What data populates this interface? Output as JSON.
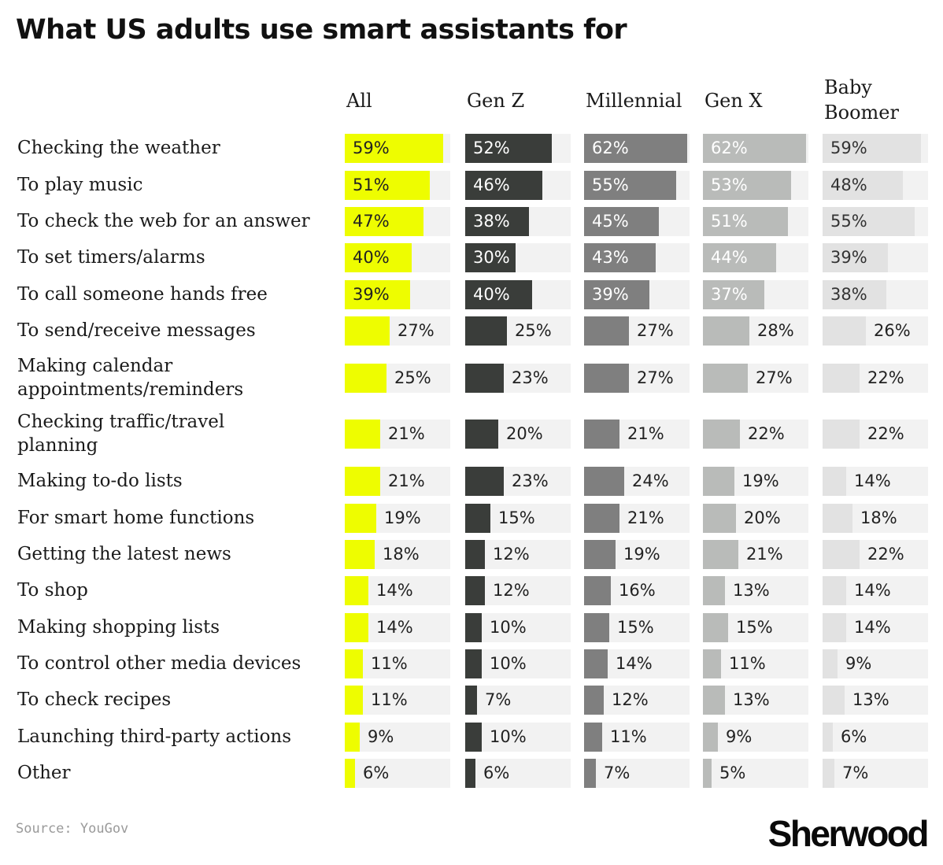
{
  "title": "What US adults use smart assistants for",
  "source": "Source: YouGov",
  "logo": "Sherwood",
  "chart_data": {
    "type": "bar",
    "title": "What US adults use smart assistants for",
    "value_unit": "%",
    "xlim": [
      0,
      100
    ],
    "categories": [
      "Checking the weather",
      "To play music",
      "To check the web for an answer",
      "To set timers/alarms",
      "To call someone hands free",
      "To send/receive messages",
      "Making calendar appointments/reminders",
      "Checking traffic/travel planning",
      "Making to-do lists",
      "For smart home functions",
      "Getting the latest news",
      "To shop",
      "Making shopping lists",
      "To control other media devices",
      "To check recipes",
      "Launching third-party actions",
      "Other"
    ],
    "category_lines": [
      [
        "Checking the weather"
      ],
      [
        "To play music"
      ],
      [
        "To check the web for an answer"
      ],
      [
        "To set timers/alarms"
      ],
      [
        "To call someone hands free"
      ],
      [
        "To send/receive messages"
      ],
      [
        "Making calendar",
        "appointments/reminders"
      ],
      [
        "Checking traffic/travel",
        "planning"
      ],
      [
        "Making to-do lists"
      ],
      [
        "For smart home functions"
      ],
      [
        "Getting the latest news"
      ],
      [
        "To shop"
      ],
      [
        "Making shopping lists"
      ],
      [
        "To control other media devices"
      ],
      [
        "To check recipes"
      ],
      [
        "Launching third-party actions"
      ],
      [
        "Other"
      ]
    ],
    "series": [
      {
        "name": "All",
        "header_lines": [
          "All"
        ],
        "color": "#eefd00",
        "label_color": "#222222",
        "values": [
          59,
          51,
          47,
          40,
          39,
          27,
          25,
          21,
          21,
          19,
          18,
          14,
          14,
          11,
          11,
          9,
          6
        ]
      },
      {
        "name": "Gen Z",
        "header_lines": [
          "Gen Z"
        ],
        "color": "#3a3d3a",
        "label_color": "#ffffff",
        "values": [
          52,
          46,
          38,
          30,
          40,
          25,
          23,
          20,
          23,
          15,
          12,
          12,
          10,
          10,
          7,
          10,
          6
        ]
      },
      {
        "name": "Millennial",
        "header_lines": [
          "Millennial"
        ],
        "color": "#7f7f7f",
        "label_color": "#ffffff",
        "values": [
          62,
          55,
          45,
          43,
          39,
          27,
          27,
          21,
          24,
          21,
          19,
          16,
          15,
          14,
          12,
          11,
          7
        ]
      },
      {
        "name": "Gen X",
        "header_lines": [
          "Gen X"
        ],
        "color": "#b9bbb9",
        "label_color": "#ffffff",
        "values": [
          62,
          53,
          51,
          44,
          37,
          28,
          27,
          22,
          19,
          20,
          21,
          13,
          15,
          11,
          13,
          9,
          5
        ]
      },
      {
        "name": "Baby Boomer",
        "header_lines": [
          "Baby",
          "Boomer"
        ],
        "color": "#e2e2e2",
        "label_color": "#333333",
        "values": [
          59,
          48,
          55,
          39,
          38,
          26,
          22,
          22,
          14,
          18,
          22,
          14,
          14,
          9,
          13,
          6,
          7
        ]
      }
    ]
  }
}
